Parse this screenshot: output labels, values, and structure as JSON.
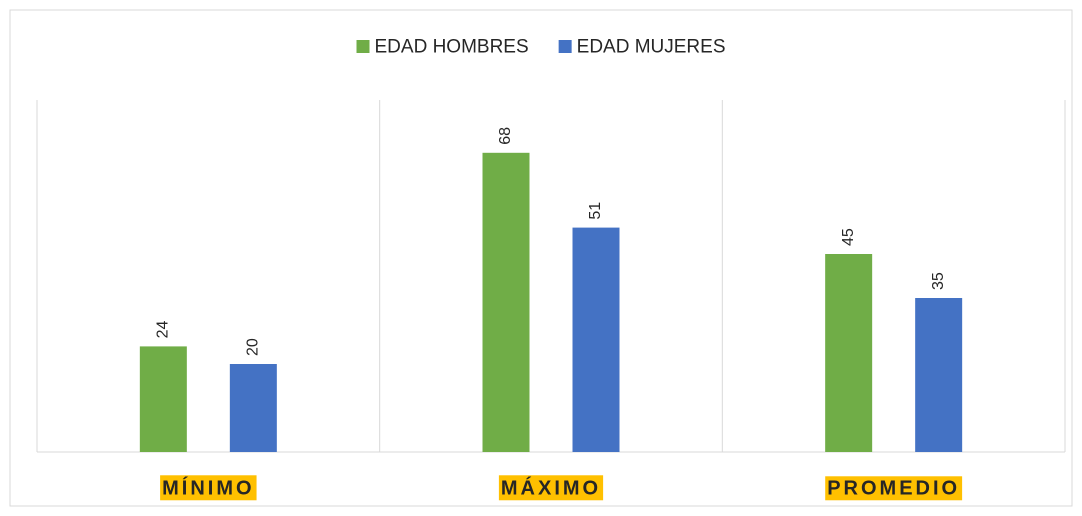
{
  "chart_data": {
    "type": "bar",
    "categories": [
      "MÍNIMO",
      "MÁXIMO",
      "PROMEDIO"
    ],
    "series": [
      {
        "name": "EDAD HOMBRES",
        "color": "#70ad47",
        "values": [
          24,
          68,
          45
        ]
      },
      {
        "name": "EDAD MUJERES",
        "color": "#4472c4",
        "values": [
          20,
          51,
          35
        ]
      }
    ],
    "ylim": [
      0,
      80
    ],
    "legend": "top"
  }
}
